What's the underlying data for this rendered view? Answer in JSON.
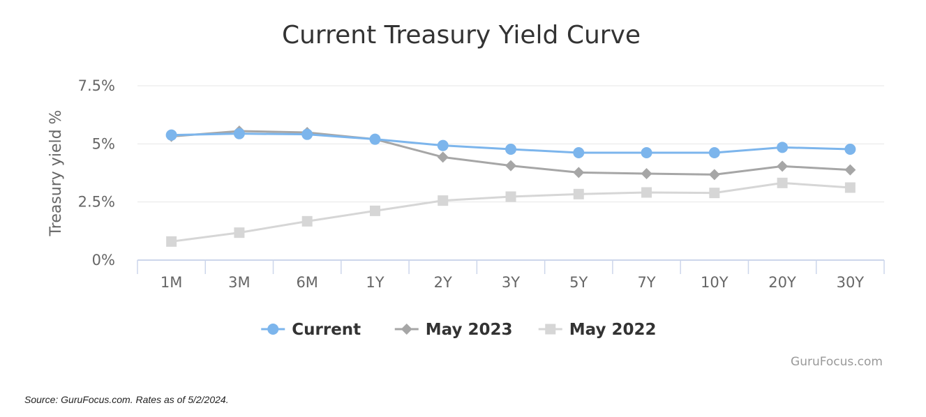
{
  "chart_data": {
    "type": "line",
    "title": "Current Treasury Yield Curve",
    "ylabel": "Treasury yield %",
    "xlabel": "",
    "ylim": [
      0,
      7.5
    ],
    "yticks": [
      {
        "value": 0,
        "label": "0%"
      },
      {
        "value": 2.5,
        "label": "2.5%"
      },
      {
        "value": 5,
        "label": "5%"
      },
      {
        "value": 7.5,
        "label": "7.5%"
      }
    ],
    "categories": [
      "1M",
      "3M",
      "6M",
      "1Y",
      "2Y",
      "3Y",
      "5Y",
      "7Y",
      "10Y",
      "20Y",
      "30Y"
    ],
    "series": [
      {
        "name": "Current",
        "color": "#7cb5ec",
        "marker": "circle",
        "values": [
          5.38,
          5.44,
          5.41,
          5.2,
          4.93,
          4.77,
          4.62,
          4.62,
          4.62,
          4.85,
          4.77
        ]
      },
      {
        "name": "May 2023",
        "color": "#a6a6a6",
        "marker": "diamond",
        "values": [
          5.32,
          5.55,
          5.49,
          5.2,
          4.43,
          4.06,
          3.77,
          3.72,
          3.68,
          4.04,
          3.88
        ]
      },
      {
        "name": "May 2022",
        "color": "#d6d6d6",
        "marker": "square",
        "values": [
          0.8,
          1.18,
          1.67,
          2.12,
          2.56,
          2.73,
          2.84,
          2.91,
          2.89,
          3.32,
          3.12
        ]
      }
    ],
    "grid": true,
    "legend_position": "bottom-center",
    "credit": "GuruFocus.com"
  },
  "caption": "Source: GuruFocus.com. Rates as of 5/2/2024."
}
